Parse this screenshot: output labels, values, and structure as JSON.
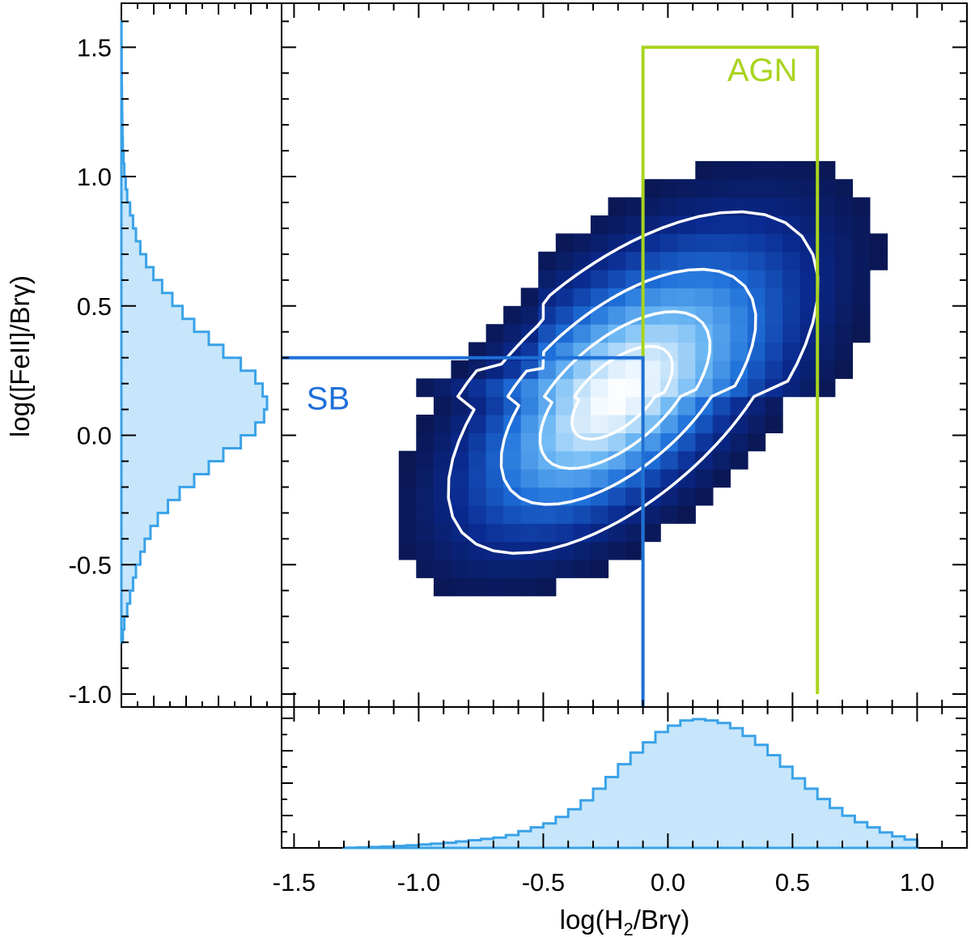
{
  "chart_data": {
    "type": "heatmap",
    "xlabel": "log(H",
    "xlabel_sub": "2",
    "xlabel_tail": "/Brγ)",
    "ylabel": "log([FeII]/Brγ)",
    "xlim": [
      -1.55,
      1.2
    ],
    "ylim": [
      -1.05,
      1.67
    ],
    "x_ticks": [
      -1.5,
      -1.0,
      -0.5,
      0.0,
      0.5,
      1.0
    ],
    "x_tick_labels": [
      "-1.5",
      "-1.0",
      "-0.5",
      "0.0",
      "0.5",
      "1.0"
    ],
    "y_ticks": [
      -1.0,
      -0.5,
      0.0,
      0.5,
      1.0,
      1.5
    ],
    "y_tick_labels": [
      "-1.0",
      "-0.5",
      "0.0",
      "0.5",
      "1.0",
      "1.5"
    ],
    "grid": false,
    "density_peak": {
      "x": -0.2,
      "y": 0.15
    },
    "regions": [
      {
        "name": "AGN",
        "color": "#a8d41e",
        "x": [
          -0.1,
          0.6
        ],
        "y": [
          -1.0,
          1.5
        ]
      },
      {
        "name": "SB",
        "color": "#1e6fd9",
        "x_max": -0.1,
        "y_max": 0.3
      }
    ],
    "contour_levels": [
      0.13,
      0.38,
      0.65,
      0.86
    ],
    "colormap": [
      "#0a0f3a",
      "#0a2a90",
      "#1e6fd9",
      "#6cb8f4",
      "#ffffff"
    ],
    "histogram_x": {
      "bin_width": 0.05,
      "range": [
        -1.3,
        1.0
      ],
      "counts": [
        0.002,
        0.004,
        0.007,
        0.01,
        0.015,
        0.021,
        0.027,
        0.033,
        0.04,
        0.05,
        0.06,
        0.07,
        0.08,
        0.1,
        0.13,
        0.16,
        0.19,
        0.24,
        0.3,
        0.37,
        0.46,
        0.55,
        0.65,
        0.74,
        0.82,
        0.9,
        0.95,
        0.99,
        1.0,
        0.99,
        0.97,
        0.93,
        0.87,
        0.8,
        0.72,
        0.63,
        0.54,
        0.46,
        0.38,
        0.31,
        0.25,
        0.2,
        0.16,
        0.12,
        0.09,
        0.065
      ]
    },
    "histogram_y": {
      "bin_width": 0.05,
      "range": [
        -0.8,
        1.6
      ],
      "counts": [
        0.01,
        0.02,
        0.04,
        0.06,
        0.08,
        0.1,
        0.13,
        0.16,
        0.2,
        0.25,
        0.32,
        0.4,
        0.5,
        0.6,
        0.7,
        0.82,
        0.92,
        0.98,
        1.0,
        0.97,
        0.92,
        0.82,
        0.7,
        0.6,
        0.5,
        0.42,
        0.35,
        0.28,
        0.22,
        0.17,
        0.13,
        0.1,
        0.08,
        0.06,
        0.04,
        0.03,
        0.02,
        0.015,
        0.01,
        0.008,
        0.006,
        0.005,
        0.004,
        0.003,
        0.002,
        0.002,
        0.001,
        0.001
      ]
    },
    "histogram_color": "#3aa2e8",
    "histogram_fill": "#c7e6fb"
  }
}
